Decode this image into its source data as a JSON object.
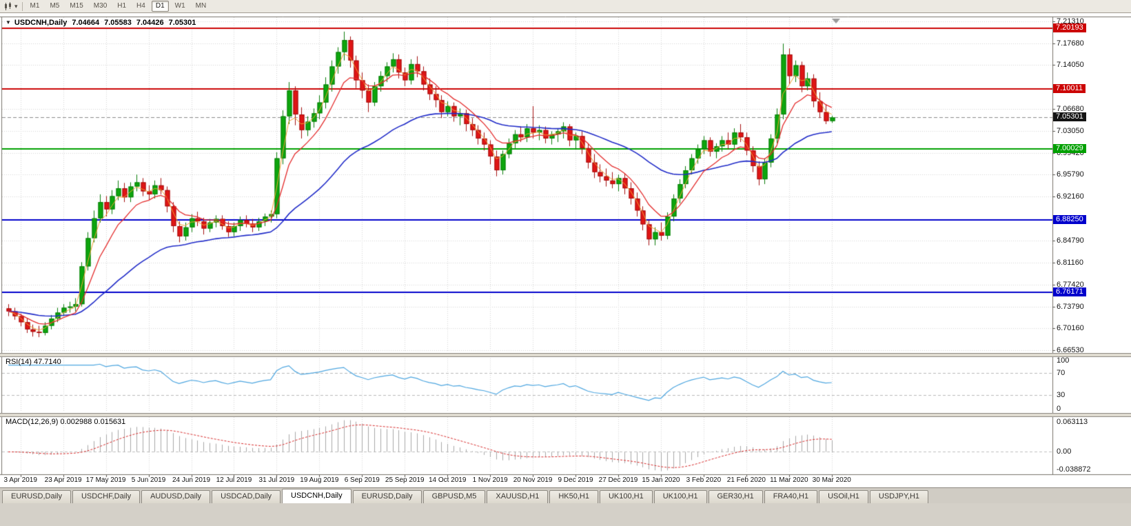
{
  "toolbar": {
    "timeframes": [
      "M1",
      "M5",
      "M15",
      "M30",
      "H1",
      "H4",
      "D1",
      "W1",
      "MN"
    ],
    "active_timeframe": "D1"
  },
  "chart": {
    "symbol_label": "USDCNH,Daily",
    "ohlc": {
      "open": "7.04664",
      "high": "7.05583",
      "low": "7.04426",
      "close": "7.05301"
    },
    "price_ticks": [
      "7.21310",
      "7.17680",
      "7.14050",
      "7.06680",
      "7.03050",
      "6.99420",
      "6.95790",
      "6.92160",
      "6.84790",
      "6.81160",
      "6.77420",
      "6.73790",
      "6.70160",
      "6.66530"
    ],
    "price_lines": [
      {
        "value": 7.20193,
        "label": "7.20193",
        "color": "#cc0404"
      },
      {
        "value": 7.10011,
        "label": "7.10011",
        "color": "#cc0404"
      },
      {
        "value": 7.00029,
        "label": "7.00029",
        "color": "#00a000"
      },
      {
        "value": 6.8825,
        "label": "6.88250",
        "color": "#0000cc"
      },
      {
        "value": 6.76171,
        "label": "6.76171",
        "color": "#0000cc"
      }
    ],
    "bid": {
      "value": 7.05301,
      "label": "7.05301",
      "color": "#141414"
    }
  },
  "indicators": {
    "rsi": {
      "label": "RSI(14) 47.7140",
      "levels": [
        "100",
        "70",
        "30",
        "0"
      ],
      "line_color": "#4da6e0",
      "period": 14
    },
    "macd": {
      "label": "MACD(12,26,9) 0.002988 0.015631",
      "axis_labels": [
        "0.063113",
        "0.00",
        "-0.038872"
      ],
      "hist_color": "#a8a8a8",
      "signal_color": "#d92b2b",
      "fast": 12,
      "slow": 26,
      "signal": 9
    }
  },
  "chart_data": {
    "type": "candlestick",
    "symbol": "USDCNH",
    "timeframe": "Daily",
    "ylim": [
      6.6653,
      7.2131
    ],
    "up_color": "#0da60d",
    "down_color": "#e01515",
    "up_border": "#0a7d0a",
    "down_border": "#a31010",
    "x_tick_labels": [
      "3 Apr 2019",
      "23 Apr 2019",
      "17 May 2019",
      "5 Jun 2019",
      "24 Jun 2019",
      "12 Jul 2019",
      "31 Jul 2019",
      "19 Aug 2019",
      "6 Sep 2019",
      "25 Sep 2019",
      "14 Oct 2019",
      "1 Nov 2019",
      "20 Nov 2019",
      "9 Dec 2019",
      "27 Dec 2019",
      "15 Jan 2020",
      "3 Feb 2020",
      "21 Feb 2020",
      "11 Mar 2020",
      "30 Mar 2020"
    ],
    "hlines": [
      7.20193,
      7.10011,
      7.00029,
      6.8825,
      6.76171
    ],
    "overlays": [
      {
        "name": "ma-fast",
        "color": "#f2a232",
        "period": 3
      },
      {
        "name": "ma-mid",
        "color": "#e42b2b",
        "period": 8
      },
      {
        "name": "ma-slow",
        "color": "#1f2ac8",
        "period": 34
      }
    ],
    "indicator_panels": [
      {
        "type": "rsi",
        "period": 14,
        "current": "47.7140",
        "levels": [
          70,
          30
        ]
      },
      {
        "type": "macd",
        "fast": 12,
        "slow": 26,
        "signal": 9,
        "current_macd": "0.002988",
        "current_signal": "0.015631",
        "axis_range": [
          -0.038872,
          0.063113
        ]
      }
    ],
    "candles": [
      [
        6.735,
        6.742,
        6.722,
        6.73
      ],
      [
        6.73,
        6.736,
        6.716,
        6.722
      ],
      [
        6.722,
        6.726,
        6.705,
        6.712
      ],
      [
        6.712,
        6.718,
        6.694,
        6.7
      ],
      [
        6.7,
        6.708,
        6.688,
        6.696
      ],
      [
        6.696,
        6.706,
        6.687,
        6.694
      ],
      [
        6.694,
        6.712,
        6.69,
        6.706
      ],
      [
        6.706,
        6.724,
        6.7,
        6.718
      ],
      [
        6.718,
        6.736,
        6.712,
        6.728
      ],
      [
        6.728,
        6.742,
        6.722,
        6.736
      ],
      [
        6.736,
        6.746,
        6.728,
        6.738
      ],
      [
        6.738,
        6.752,
        6.73,
        6.742
      ],
      [
        6.742,
        6.812,
        6.738,
        6.805
      ],
      [
        6.805,
        6.862,
        6.798,
        6.852
      ],
      [
        6.852,
        6.898,
        6.845,
        6.885
      ],
      [
        6.885,
        6.925,
        6.878,
        6.912
      ],
      [
        6.912,
        6.922,
        6.888,
        6.9
      ],
      [
        6.9,
        6.932,
        6.892,
        6.922
      ],
      [
        6.922,
        6.948,
        6.915,
        6.935
      ],
      [
        6.935,
        6.944,
        6.912,
        6.92
      ],
      [
        6.92,
        6.945,
        6.912,
        6.938
      ],
      [
        6.938,
        6.958,
        6.93,
        6.945
      ],
      [
        6.945,
        6.952,
        6.922,
        6.93
      ],
      [
        6.93,
        6.94,
        6.915,
        6.925
      ],
      [
        6.925,
        6.948,
        6.918,
        6.94
      ],
      [
        6.94,
        6.952,
        6.925,
        6.932
      ],
      [
        6.932,
        6.938,
        6.895,
        6.905
      ],
      [
        6.905,
        6.912,
        6.862,
        6.872
      ],
      [
        6.872,
        6.88,
        6.845,
        6.855
      ],
      [
        6.855,
        6.878,
        6.848,
        6.87
      ],
      [
        6.87,
        6.892,
        6.862,
        6.885
      ],
      [
        6.885,
        6.896,
        6.872,
        6.88
      ],
      [
        6.88,
        6.886,
        6.858,
        6.868
      ],
      [
        6.868,
        6.884,
        6.862,
        6.878
      ],
      [
        6.878,
        6.89,
        6.87,
        6.884
      ],
      [
        6.884,
        6.89,
        6.866,
        6.872
      ],
      [
        6.872,
        6.88,
        6.854,
        6.862
      ],
      [
        6.862,
        6.878,
        6.855,
        6.872
      ],
      [
        6.872,
        6.888,
        6.864,
        6.882
      ],
      [
        6.882,
        6.89,
        6.87,
        6.876
      ],
      [
        6.876,
        6.884,
        6.862,
        6.87
      ],
      [
        6.87,
        6.886,
        6.864,
        6.88
      ],
      [
        6.88,
        6.893,
        6.872,
        6.888
      ],
      [
        6.888,
        6.898,
        6.878,
        6.892
      ],
      [
        6.892,
        6.995,
        6.885,
        6.985
      ],
      [
        6.985,
        7.065,
        6.975,
        7.055
      ],
      [
        7.055,
        7.112,
        7.042,
        7.098
      ],
      [
        7.098,
        7.105,
        7.04,
        7.058
      ],
      [
        7.058,
        7.07,
        7.018,
        7.032
      ],
      [
        7.032,
        7.055,
        7.022,
        7.046
      ],
      [
        7.046,
        7.068,
        7.036,
        7.06
      ],
      [
        7.06,
        7.09,
        7.05,
        7.078
      ],
      [
        7.078,
        7.12,
        7.068,
        7.108
      ],
      [
        7.108,
        7.148,
        7.096,
        7.138
      ],
      [
        7.138,
        7.17,
        7.126,
        7.162
      ],
      [
        7.162,
        7.196,
        7.148,
        7.182
      ],
      [
        7.182,
        7.188,
        7.136,
        7.148
      ],
      [
        7.148,
        7.156,
        7.102,
        7.115
      ],
      [
        7.115,
        7.128,
        7.085,
        7.098
      ],
      [
        7.098,
        7.108,
        7.062,
        7.078
      ],
      [
        7.078,
        7.112,
        7.072,
        7.105
      ],
      [
        7.105,
        7.13,
        7.096,
        7.122
      ],
      [
        7.122,
        7.145,
        7.112,
        7.138
      ],
      [
        7.138,
        7.16,
        7.128,
        7.15
      ],
      [
        7.15,
        7.158,
        7.118,
        7.128
      ],
      [
        7.128,
        7.136,
        7.105,
        7.115
      ],
      [
        7.115,
        7.15,
        7.108,
        7.142
      ],
      [
        7.142,
        7.155,
        7.12,
        7.13
      ],
      [
        7.13,
        7.138,
        7.098,
        7.108
      ],
      [
        7.108,
        7.118,
        7.082,
        7.092
      ],
      [
        7.092,
        7.105,
        7.07,
        7.082
      ],
      [
        7.082,
        7.09,
        7.052,
        7.062
      ],
      [
        7.062,
        7.08,
        7.055,
        7.072
      ],
      [
        7.072,
        7.078,
        7.046,
        7.055
      ],
      [
        7.055,
        7.068,
        7.04,
        7.06
      ],
      [
        7.06,
        7.066,
        7.03,
        7.042
      ],
      [
        7.042,
        7.052,
        7.022,
        7.032
      ],
      [
        7.032,
        7.04,
        7.008,
        7.018
      ],
      [
        7.018,
        7.028,
        6.998,
        7.008
      ],
      [
        7.008,
        7.015,
        6.975,
        6.988
      ],
      [
        6.988,
        6.998,
        6.955,
        6.965
      ],
      [
        6.965,
        6.998,
        6.958,
        6.992
      ],
      [
        6.992,
        7.018,
        6.985,
        7.01
      ],
      [
        7.01,
        7.032,
        7.002,
        7.025
      ],
      [
        7.025,
        7.038,
        7.012,
        7.02
      ],
      [
        7.02,
        7.042,
        7.012,
        7.035
      ],
      [
        7.035,
        7.072,
        7.018,
        7.028
      ],
      [
        7.028,
        7.04,
        7.015,
        7.032
      ],
      [
        7.032,
        7.038,
        7.01,
        7.018
      ],
      [
        7.018,
        7.03,
        7.008,
        7.025
      ],
      [
        7.025,
        7.035,
        7.012,
        7.03
      ],
      [
        7.03,
        7.045,
        7.018,
        7.038
      ],
      [
        7.038,
        7.042,
        7.005,
        7.015
      ],
      [
        7.015,
        7.028,
        7.0,
        7.022
      ],
      [
        7.022,
        7.03,
        6.992,
        7.002
      ],
      [
        7.002,
        7.01,
        6.968,
        6.978
      ],
      [
        6.978,
        6.992,
        6.952,
        6.962
      ],
      [
        6.962,
        6.975,
        6.945,
        6.955
      ],
      [
        6.955,
        6.968,
        6.938,
        6.948
      ],
      [
        6.948,
        6.962,
        6.935,
        6.942
      ],
      [
        6.942,
        6.958,
        6.93,
        6.952
      ],
      [
        6.952,
        6.96,
        6.925,
        6.935
      ],
      [
        6.935,
        6.945,
        6.908,
        6.918
      ],
      [
        6.918,
        6.928,
        6.888,
        6.898
      ],
      [
        6.898,
        6.905,
        6.865,
        6.875
      ],
      [
        6.875,
        6.882,
        6.84,
        6.85
      ],
      [
        6.85,
        6.87,
        6.84,
        6.862
      ],
      [
        6.862,
        6.878,
        6.848,
        6.856
      ],
      [
        6.856,
        6.895,
        6.85,
        6.888
      ],
      [
        6.888,
        6.925,
        6.88,
        6.918
      ],
      [
        6.918,
        6.95,
        6.91,
        6.942
      ],
      [
        6.942,
        6.972,
        6.935,
        6.965
      ],
      [
        6.965,
        6.992,
        6.958,
        6.985
      ],
      [
        6.985,
        7.008,
        6.976,
        7.0
      ],
      [
        7.0,
        7.022,
        6.992,
        7.015
      ],
      [
        7.015,
        7.02,
        6.988,
        6.996
      ],
      [
        6.996,
        7.01,
        6.985,
        7.005
      ],
      [
        7.005,
        7.022,
        6.996,
        7.015
      ],
      [
        7.015,
        7.028,
        7.0,
        7.008
      ],
      [
        7.008,
        7.035,
        7.002,
        7.028
      ],
      [
        7.028,
        7.042,
        7.012,
        7.02
      ],
      [
        7.02,
        7.028,
        6.99,
        6.998
      ],
      [
        6.998,
        7.005,
        6.962,
        6.972
      ],
      [
        6.972,
        6.98,
        6.94,
        6.95
      ],
      [
        6.95,
        6.985,
        6.942,
        6.978
      ],
      [
        6.978,
        7.025,
        6.97,
        7.018
      ],
      [
        7.018,
        7.068,
        7.01,
        7.058
      ],
      [
        7.058,
        7.176,
        7.05,
        7.158
      ],
      [
        7.158,
        7.168,
        7.108,
        7.122
      ],
      [
        7.122,
        7.148,
        7.112,
        7.14
      ],
      [
        7.14,
        7.146,
        7.095,
        7.105
      ],
      [
        7.105,
        7.128,
        7.098,
        7.118
      ],
      [
        7.118,
        7.125,
        7.07,
        7.08
      ],
      [
        7.08,
        7.095,
        7.052,
        7.062
      ],
      [
        7.062,
        7.075,
        7.042,
        7.047
      ],
      [
        7.047,
        7.056,
        7.044,
        7.053
      ]
    ]
  },
  "tabs": {
    "active_index": 4,
    "items": [
      "EURUSD,Daily",
      "USDCHF,Daily",
      "AUDUSD,Daily",
      "USDCAD,Daily",
      "USDCNH,Daily",
      "EURUSD,Daily",
      "GBPUSD,M5",
      "XAUUSD,H1",
      "HK50,H1",
      "UK100,H1",
      "UK100,H1",
      "GER30,H1",
      "FRA40,H1",
      "USOil,H1",
      "USDJPY,H1"
    ]
  }
}
